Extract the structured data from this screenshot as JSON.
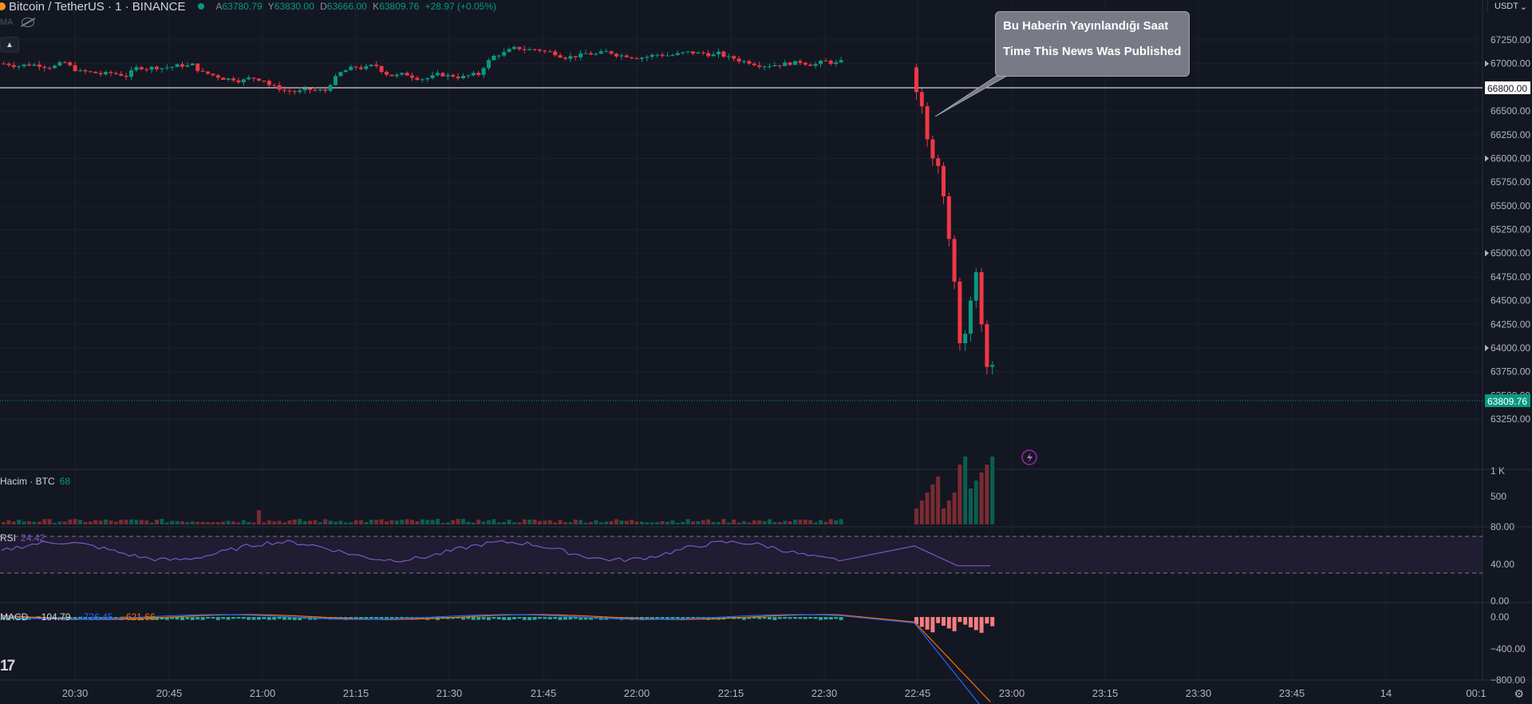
{
  "header": {
    "symbol": "Bitcoin / TetherUS · 1 · BINANCE",
    "ohlc": [
      {
        "k": "A",
        "v": "63780.79"
      },
      {
        "k": "Y",
        "v": "63830.00"
      },
      {
        "k": "D",
        "v": "63666.00"
      },
      {
        "k": "K",
        "v": "63809.76"
      }
    ],
    "change": "+28.97 (+0.05%)",
    "ma_label": "MA",
    "currency": "USDT"
  },
  "annotation": {
    "line1": "Bu Haberin Yayınlandığı Saat",
    "line2": "Time This News Was Published"
  },
  "price_axis": {
    "ticks": [
      "67250.00",
      "67000.00",
      "66750.00",
      "66500.00",
      "66250.00",
      "66000.00",
      "65750.00",
      "65500.00",
      "65250.00",
      "65000.00",
      "64750.00",
      "64500.00",
      "64250.00",
      "64000.00",
      "63750.00",
      "63500.00",
      "63250.00"
    ],
    "horizontal_line": "66800.00",
    "last_price": "63809.76"
  },
  "time_axis": [
    "20:30",
    "20:45",
    "21:00",
    "21:15",
    "21:30",
    "21:45",
    "22:00",
    "22:15",
    "22:30",
    "22:45",
    "23:00",
    "23:15",
    "23:30",
    "23:45",
    "14",
    "00:1"
  ],
  "volume": {
    "label": "Hacim · BTC",
    "value": "68",
    "ticks": [
      "1 K",
      "500"
    ]
  },
  "rsi": {
    "label": "RSI",
    "value": "24.42",
    "ticks": [
      "80.00",
      "40.00",
      "0.00"
    ]
  },
  "macd": {
    "label": "MACD",
    "hist": "−104.79",
    "macd": "−726.45",
    "signal": "−621.66",
    "ticks": [
      "0.00",
      "−400.00",
      "−800.00"
    ]
  },
  "colors": {
    "up": "#089981",
    "down": "#f23645",
    "background": "#131722",
    "rsi": "#7e57c2",
    "macd_line": "#2962ff",
    "signal_line": "#ff6d00"
  },
  "icons": [
    "tradingview-logo-icon",
    "settings-icon",
    "lightning-icon",
    "eye-off-icon",
    "chevron-up-icon"
  ]
}
